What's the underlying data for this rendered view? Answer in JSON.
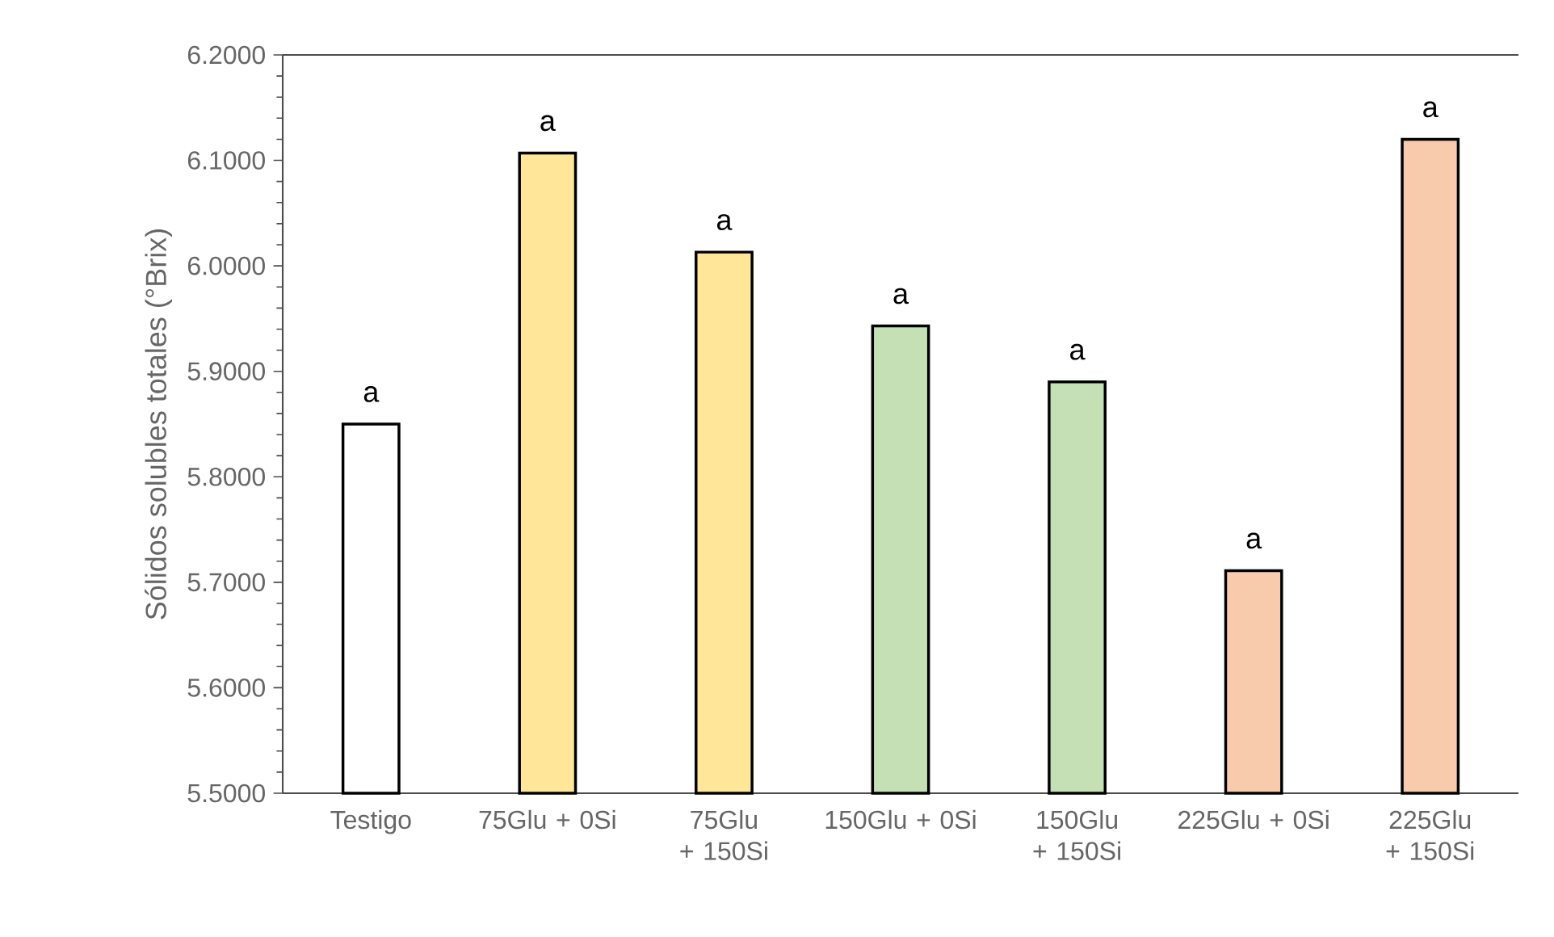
{
  "chart_data": {
    "type": "bar",
    "ylabel": "Sólidos solubles totales (°Brix)",
    "categories": [
      "Testigo",
      "75Glu + 0Si",
      "75Glu + 150Si",
      "150Glu + 0Si",
      "150Glu + 150Si",
      "225Glu + 0Si",
      "225Glu + 150Si"
    ],
    "values": [
      5.85,
      6.107,
      6.013,
      5.943,
      5.89,
      5.711,
      6.12
    ],
    "colors": [
      "#ffffff",
      "#ffe699",
      "#ffe699",
      "#c5e0b4",
      "#c5e0b4",
      "#f8cbad",
      "#f8cbad"
    ],
    "ylim": [
      5.5,
      6.2
    ],
    "yticks": [
      {
        "value": 5.5,
        "label": "5.5000"
      },
      {
        "value": 5.6,
        "label": "5.6000"
      },
      {
        "value": 5.7,
        "label": "5.7000"
      },
      {
        "value": 5.8,
        "label": "5.8000"
      },
      {
        "value": 5.9,
        "label": "5.9000"
      },
      {
        "value": 6.0,
        "label": "6.0000"
      },
      {
        "value": 6.1,
        "label": "6.1000"
      },
      {
        "value": 6.2,
        "label": "6.2000"
      }
    ],
    "annotations": [
      {
        "text": "a",
        "x": "Testigo",
        "y": 5.85
      },
      {
        "text": "a",
        "x": "75Glu + 0Si",
        "y": 6.107
      },
      {
        "text": "a",
        "x": "75Glu + 150Si",
        "y": 6.013
      },
      {
        "text": "a",
        "x": "150Glu + 0Si",
        "y": 5.943
      },
      {
        "text": "a",
        "x": "150Glu + 150Si",
        "y": 5.89
      },
      {
        "text": "a",
        "x": "225Glu + 0Si",
        "y": 5.711
      },
      {
        "text": "a",
        "x": "225Glu + 150Si",
        "y": 6.12
      }
    ]
  }
}
